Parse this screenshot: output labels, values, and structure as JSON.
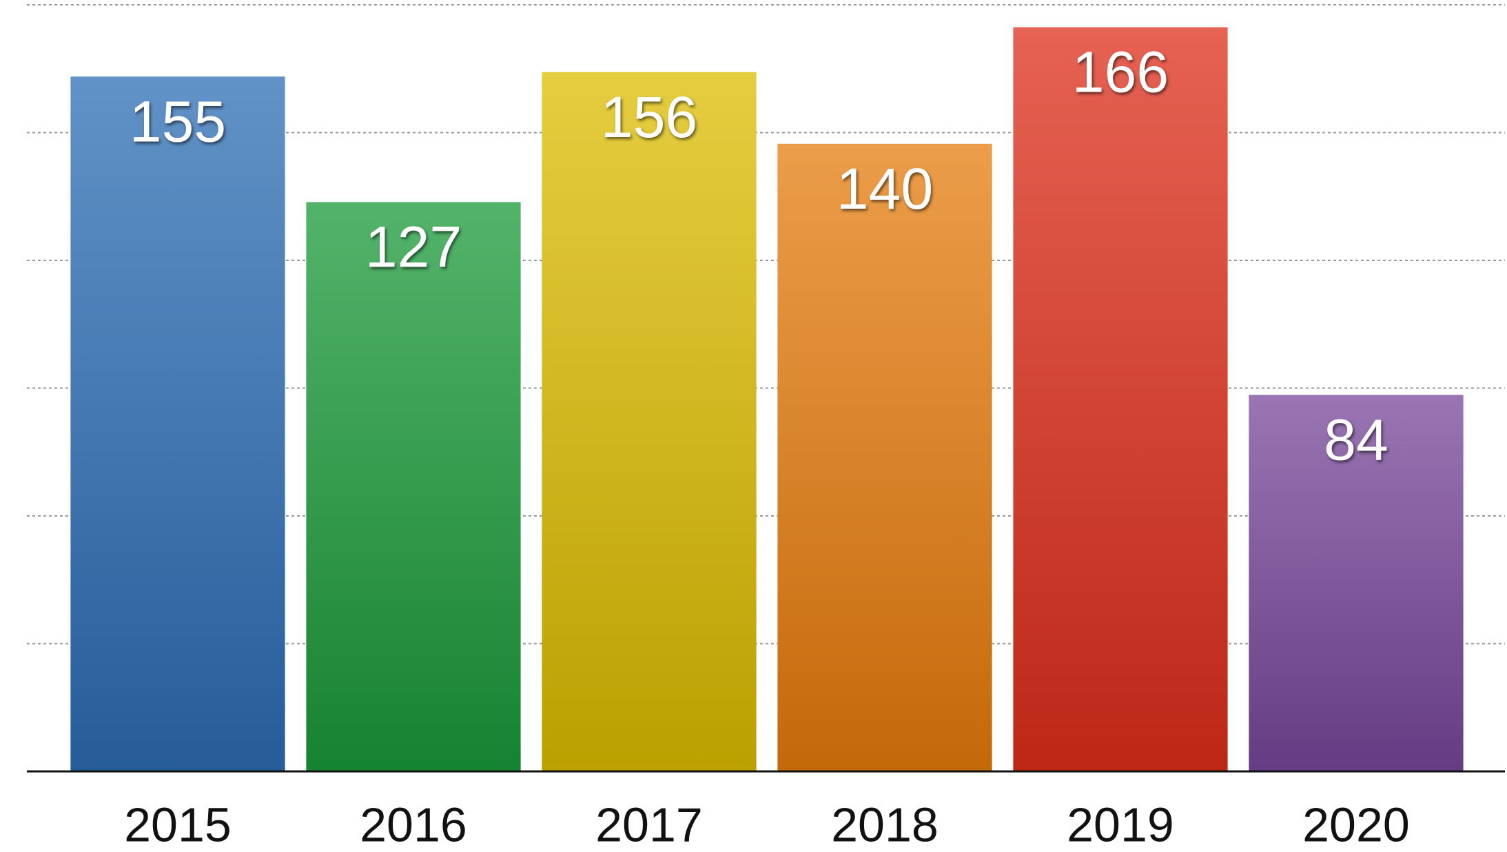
{
  "chart_data": {
    "type": "bar",
    "categories": [
      "2015",
      "2016",
      "2017",
      "2018",
      "2019",
      "2020"
    ],
    "values": [
      155,
      127,
      156,
      140,
      166,
      84
    ],
    "colors": [
      "#2c6db4",
      "#1a9a38",
      "#dcbc00",
      "#e67c0c",
      "#de2e1a",
      "#77479a"
    ],
    "ylim": [
      0,
      171
    ],
    "yticks": [
      0,
      28.5,
      57,
      85.5,
      114,
      142.5,
      171
    ],
    "grid": true
  }
}
